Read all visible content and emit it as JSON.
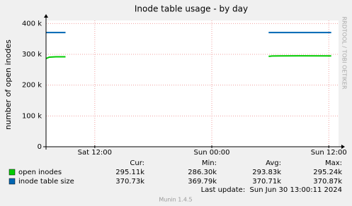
{
  "chart_data": {
    "type": "line",
    "title": "Inode table usage - by day",
    "y_label": "number of open inodes",
    "side_text": "RRDTOOL / TOBI OETIKER",
    "x": [
      "Sat 07:00",
      "Sat 07:20",
      "Sat 08:00",
      "Sat 09:00",
      "Sat 12:00",
      "Sun 05:50",
      "Sun 06:10",
      "Sun 07:00",
      "Sun 09:00",
      "Sun 12:15"
    ],
    "series": [
      {
        "name": "open inodes",
        "color": "#00cc00",
        "values": [
          286300,
          291000,
          292000,
          292000,
          null,
          293500,
          294500,
          295000,
          295200,
          295110
        ]
      },
      {
        "name": "inode table size",
        "color": "#0066b3",
        "values": [
          370870,
          370870,
          370870,
          370870,
          null,
          370730,
          370730,
          370730,
          370730,
          370730
        ]
      }
    ],
    "xlim": [
      "Sat 07:00",
      "Sun 13:00"
    ],
    "xticks": [
      "Sat 12:00",
      "Sun 00:00",
      "Sun 12:00"
    ],
    "ylim": [
      0,
      410000
    ],
    "yticks": [
      0,
      {
        "value": 100000,
        "label": "100 k"
      },
      {
        "value": 200000,
        "label": "200 k"
      },
      {
        "value": 300000,
        "label": "300 k"
      },
      {
        "value": 400000,
        "label": "400 k"
      }
    ],
    "grid": true,
    "legend_stats": {
      "headers": [
        "Cur:",
        "Min:",
        "Avg:",
        "Max:"
      ],
      "rows": [
        [
          "295.11k",
          "286.30k",
          "293.83k",
          "295.24k"
        ],
        [
          "370.73k",
          "369.79k",
          "370.71k",
          "370.87k"
        ]
      ]
    },
    "last_update": "Last update:  Sun Jun 30 13:00:11 2024",
    "footer": "Munin 1.4.5"
  }
}
